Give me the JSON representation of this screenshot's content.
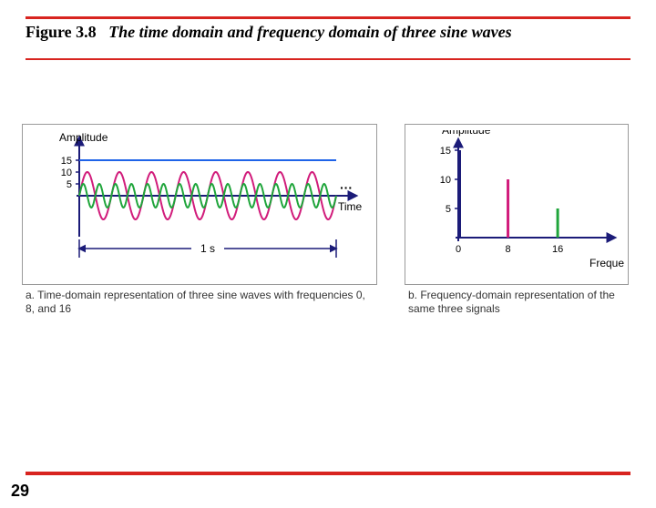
{
  "meta": {
    "rule_color": "#d8241f",
    "page_number": "29"
  },
  "title": {
    "label": "Figure 3.8",
    "caption": "The time domain and frequency domain of three sine waves"
  },
  "time_chart": {
    "type": "line",
    "y_label": "Amplitude",
    "x_label": "Time",
    "y_ticks": [
      15,
      10,
      5
    ],
    "ylim": [
      -15,
      15
    ],
    "xlim_s": 1.0,
    "duration_label": "1 s",
    "ellipsis": "···",
    "waves": [
      {
        "name": "dc",
        "amplitude": 15,
        "frequency": 0,
        "color": "#1f63e8",
        "stroke_width": 2
      },
      {
        "name": "sine8",
        "amplitude": 10,
        "frequency": 8,
        "color": "#d11c7b",
        "stroke_width": 2
      },
      {
        "name": "sine16",
        "amplitude": 5,
        "frequency": 16,
        "color": "#1fa53b",
        "stroke_width": 2
      }
    ],
    "axis_color": "#1b1b78",
    "tick_color": "#1b1b78",
    "dim_color": "#1b1b78",
    "label_fontsize": 12,
    "tick_fontsize": 11,
    "caption": "a. Time-domain representation of three sine waves with frequencies 0, 8, and 16"
  },
  "freq_chart": {
    "type": "bar",
    "y_label": "Amplitude",
    "x_label": "Frequency",
    "y_ticks": [
      15,
      10,
      5
    ],
    "x_ticks": [
      0,
      8,
      16
    ],
    "ylim": [
      0,
      15
    ],
    "xlim": [
      0,
      22
    ],
    "bars": [
      {
        "freq": 0,
        "amplitude": 15,
        "color": "#1b1b78",
        "width": 3
      },
      {
        "freq": 8,
        "amplitude": 10,
        "color": "#d11c7b",
        "width": 3
      },
      {
        "freq": 16,
        "amplitude": 5,
        "color": "#1fa53b",
        "width": 3
      }
    ],
    "axis_color": "#1b1b78",
    "label_fontsize": 12,
    "tick_fontsize": 11,
    "caption": "b. Frequency-domain representation of the same three signals"
  }
}
